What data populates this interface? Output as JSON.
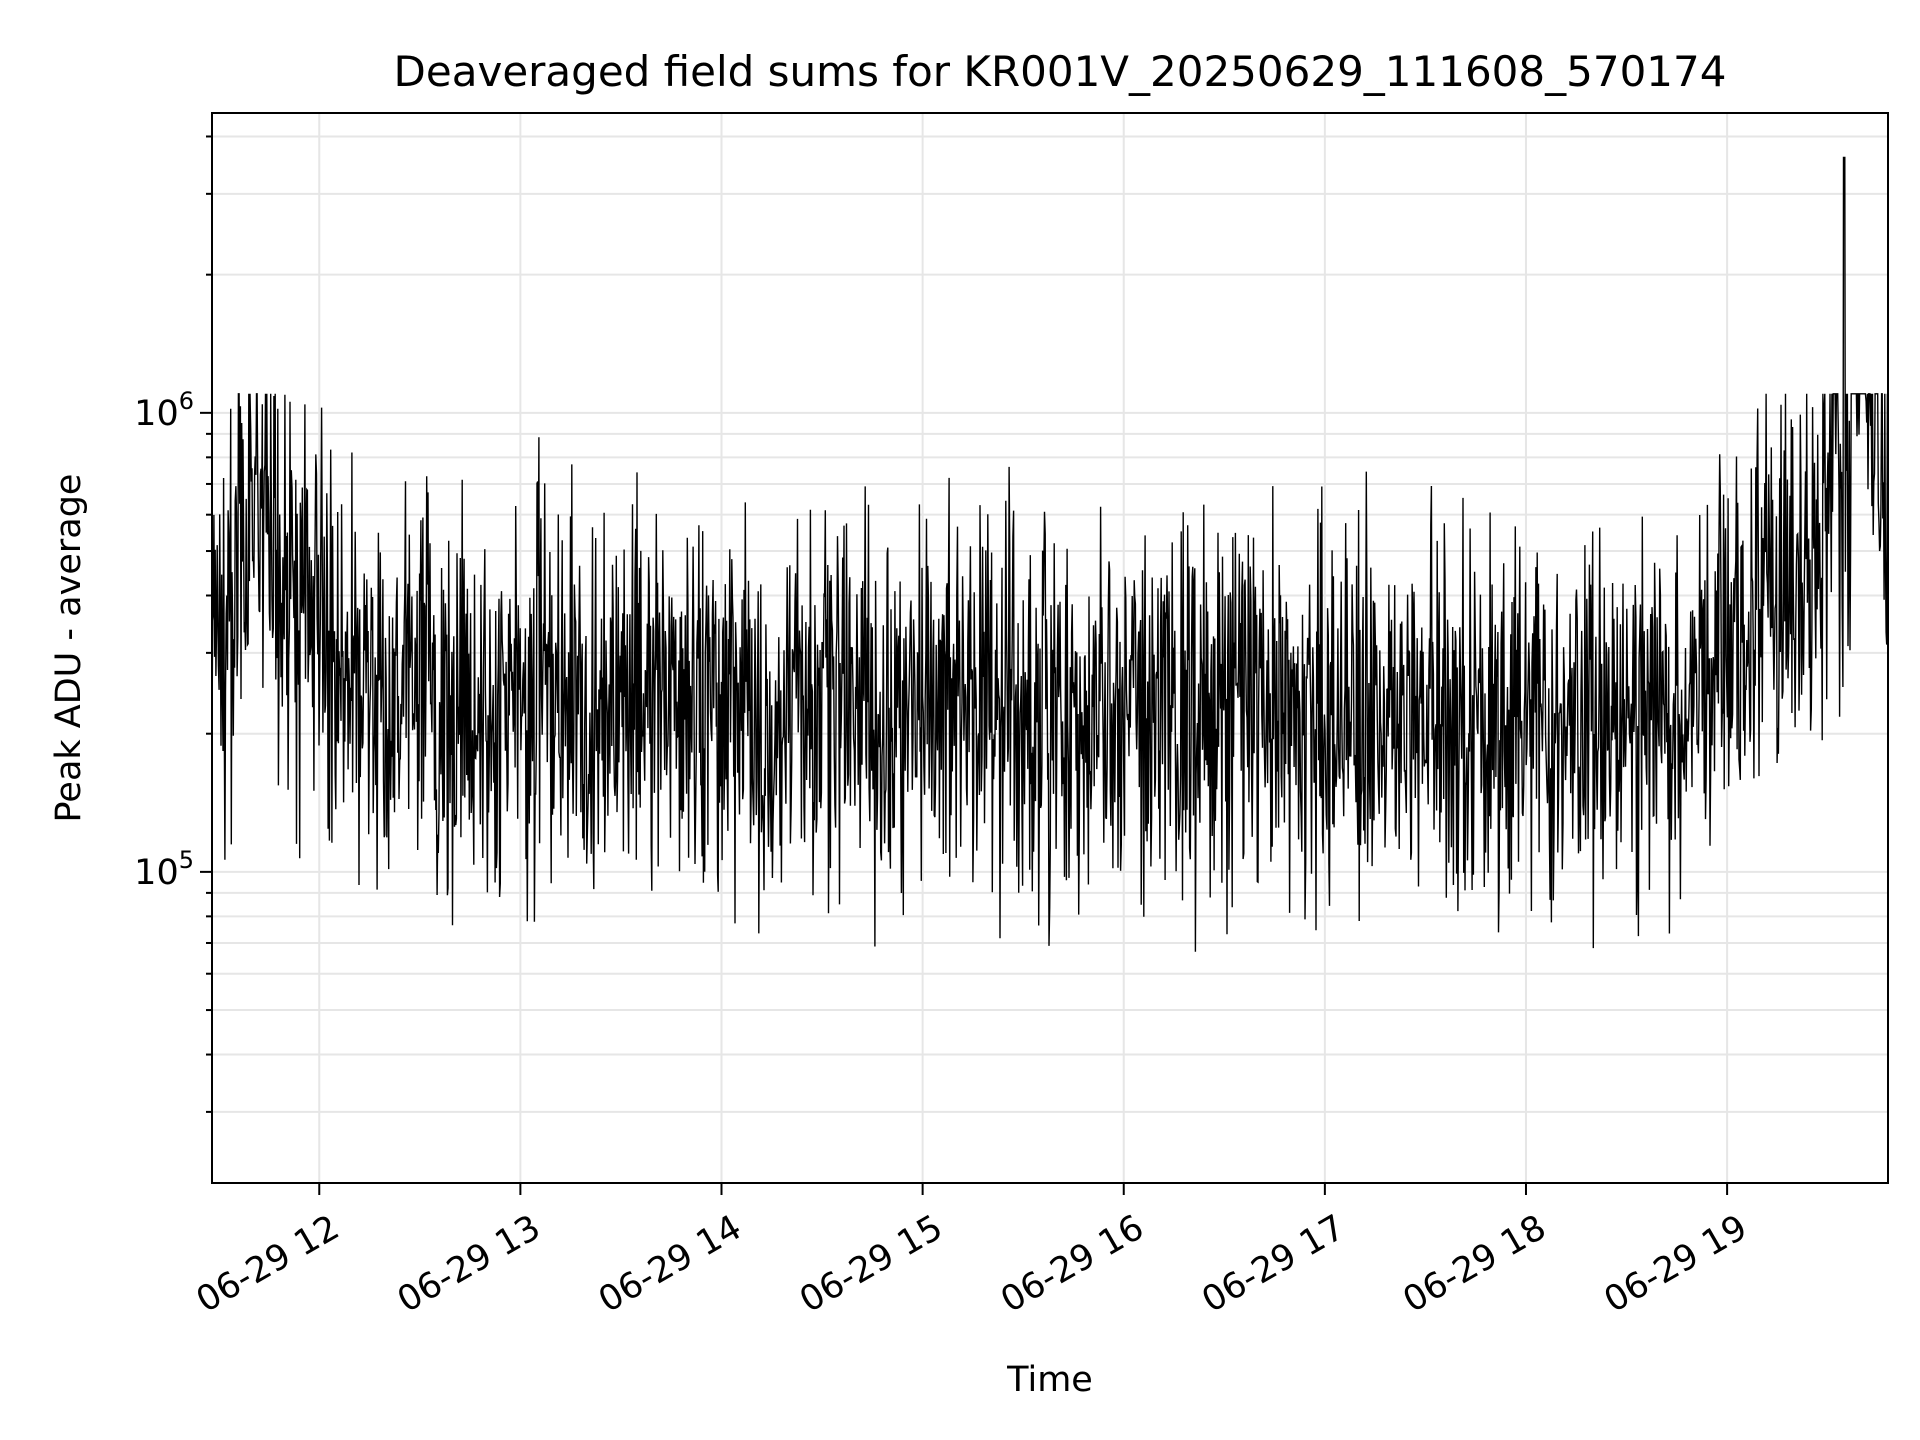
{
  "chart_data": {
    "type": "line",
    "title": "Deaveraged field sums for KR001V_20250629_111608_570174",
    "xlabel": "Time",
    "ylabel": "Peak ADU - average",
    "yscale": "log",
    "ylim": [
      21000,
      4500000
    ],
    "xlim": [
      "2025-06-29T11:28",
      "2025-06-29T19:48"
    ],
    "grid": true,
    "series_color": "#000000",
    "x_ticks": [
      {
        "value": "2025-06-29T12:00",
        "label": "06-29 12"
      },
      {
        "value": "2025-06-29T13:00",
        "label": "06-29 13"
      },
      {
        "value": "2025-06-29T14:00",
        "label": "06-29 14"
      },
      {
        "value": "2025-06-29T15:00",
        "label": "06-29 15"
      },
      {
        "value": "2025-06-29T16:00",
        "label": "06-29 16"
      },
      {
        "value": "2025-06-29T17:00",
        "label": "06-29 17"
      },
      {
        "value": "2025-06-29T18:00",
        "label": "06-29 18"
      },
      {
        "value": "2025-06-29T19:00",
        "label": "06-29 19"
      }
    ],
    "y_ticks": [
      {
        "value": 100000,
        "base": "10",
        "exp": "5"
      },
      {
        "value": 1000000,
        "base": "10",
        "exp": "6"
      }
    ],
    "series": [
      {
        "x": [
          "2025-06-29T11:28",
          "2025-06-29T11:40",
          "2025-06-29T11:50",
          "2025-06-29T12:00",
          "2025-06-29T12:15",
          "2025-06-29T12:30",
          "2025-06-29T12:45",
          "2025-06-29T13:00",
          "2025-06-29T13:15",
          "2025-06-29T13:30",
          "2025-06-29T13:45",
          "2025-06-29T14:00",
          "2025-06-29T14:15",
          "2025-06-29T14:30",
          "2025-06-29T14:45",
          "2025-06-29T15:00",
          "2025-06-29T15:15",
          "2025-06-29T15:30",
          "2025-06-29T15:45",
          "2025-06-29T16:00",
          "2025-06-29T16:15",
          "2025-06-29T16:30",
          "2025-06-29T16:45",
          "2025-06-29T17:00",
          "2025-06-29T17:15",
          "2025-06-29T17:30",
          "2025-06-29T17:45",
          "2025-06-29T18:00",
          "2025-06-29T18:15",
          "2025-06-29T18:30",
          "2025-06-29T18:45",
          "2025-06-29T19:00",
          "2025-06-29T19:15",
          "2025-06-29T19:30",
          "2025-06-29T19:35",
          "2025-06-29T19:48"
        ],
        "values": [
          300000,
          500000,
          450000,
          320000,
          260000,
          230000,
          240000,
          230000,
          235000,
          240000,
          230000,
          225000,
          220000,
          215000,
          225000,
          225000,
          230000,
          225000,
          215000,
          210000,
          215000,
          225000,
          230000,
          230000,
          225000,
          220000,
          210000,
          215000,
          210000,
          205000,
          230000,
          330000,
          420000,
          500000,
          3600000,
          520000
        ]
      }
    ]
  }
}
